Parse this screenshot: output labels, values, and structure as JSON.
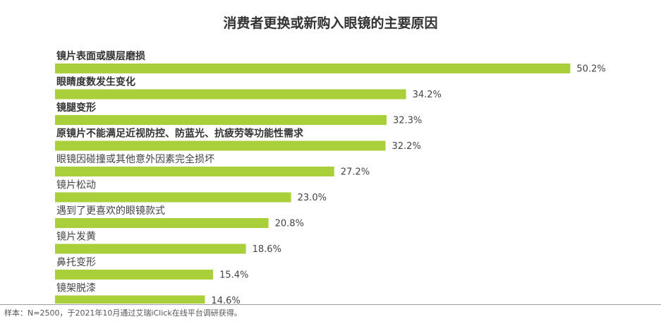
{
  "chart_data": {
    "type": "bar",
    "orientation": "horizontal",
    "title": "消费者更换或新购入眼镜的主要原因",
    "xlabel": "",
    "ylabel": "",
    "xlim": [
      0,
      55
    ],
    "grid": false,
    "legend": "none",
    "bar_color": "#a9cf3a",
    "value_format": "percent-1dp",
    "categories": [
      "镜片表面或膜层磨损",
      "眼睛度数发生变化",
      "镜腿变形",
      "原镜片不能满足近视防控、防蓝光、抗疲劳等功能性需求",
      "眼镜因碰撞或其他意外因素完全损坏",
      "镜片松动",
      "遇到了更喜欢的眼镜款式",
      "镜片发黄",
      "鼻托变形",
      "镜架脱漆"
    ],
    "bold_categories": [
      0,
      1,
      2,
      3
    ],
    "values": [
      50.2,
      34.2,
      32.3,
      32.2,
      27.2,
      23.0,
      20.8,
      18.6,
      15.4,
      14.6
    ],
    "value_labels": [
      "50.2%",
      "34.2%",
      "32.3%",
      "32.2%",
      "27.2%",
      "23.0%",
      "20.8%",
      "18.6%",
      "15.4%",
      "14.6%"
    ]
  },
  "footnote": "样本：N=2500，于2021年10月通过艾瑞iClick在线平台调研获得。"
}
